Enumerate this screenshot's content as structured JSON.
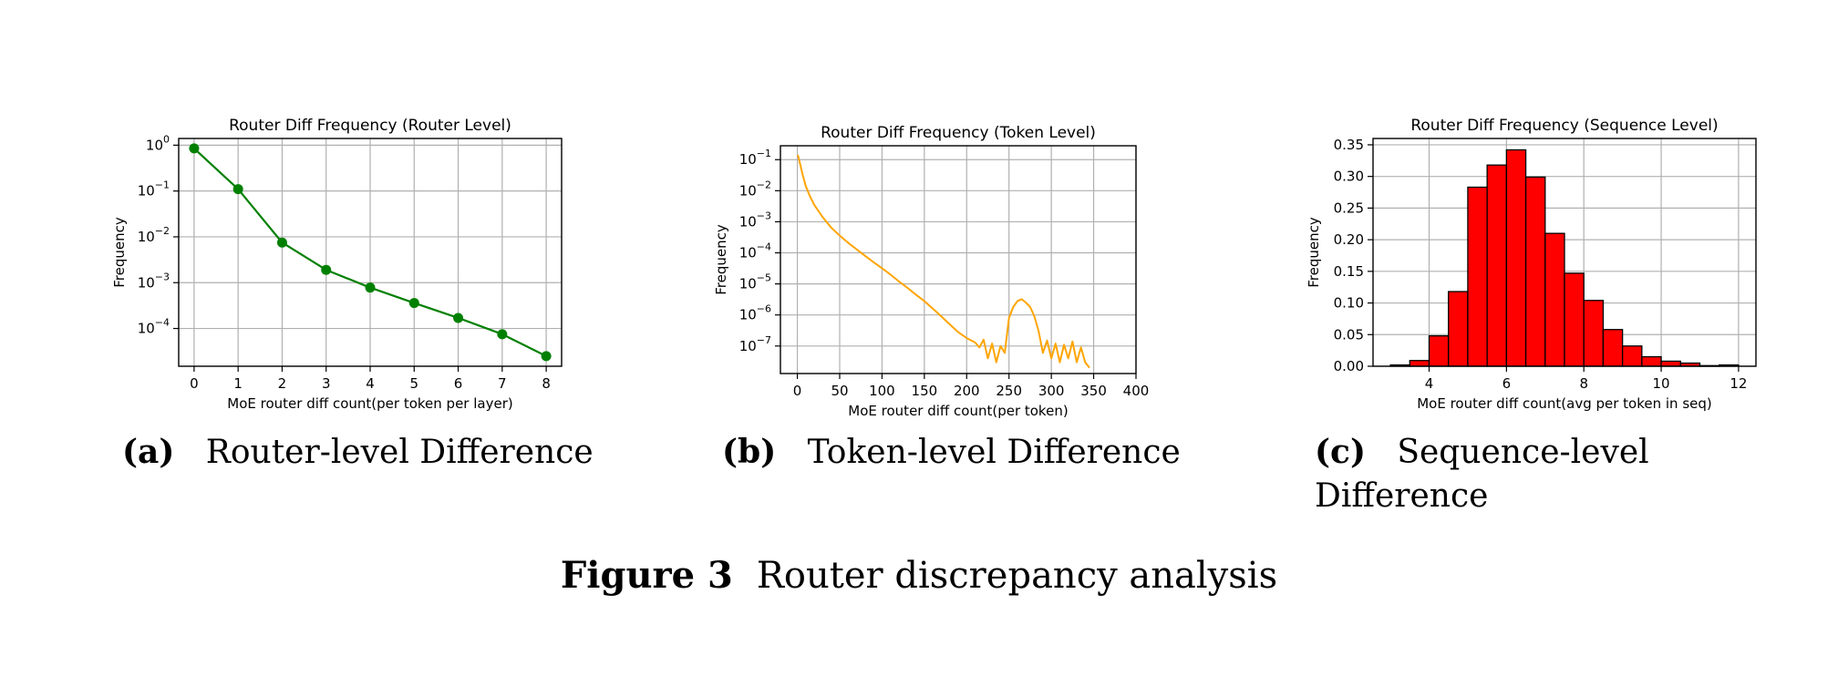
{
  "chart_data": [
    {
      "type": "line",
      "title": "Router Diff Frequency (Router Level)",
      "xlabel": "MoE router diff count(per token per layer)",
      "ylabel": "Frequency",
      "yscale": "log",
      "grid": true,
      "color": "#008000",
      "marker": "circle",
      "xlim": [
        -0.35,
        8.35
      ],
      "ylim": [
        1.5e-05,
        1.4
      ],
      "xticks": [
        0,
        1,
        2,
        3,
        4,
        5,
        6,
        7,
        8
      ],
      "xtick_labels": [
        "0",
        "1",
        "2",
        "3",
        "4",
        "5",
        "6",
        "7",
        "8"
      ],
      "yticks": [
        1,
        0.1,
        0.01,
        0.001,
        0.0001
      ],
      "ytick_labels": [
        [
          "10",
          "0"
        ],
        [
          "10",
          "−1"
        ],
        [
          "10",
          "−2"
        ],
        [
          "10",
          "−3"
        ],
        [
          "10",
          "−4"
        ]
      ],
      "x": [
        0,
        1,
        2,
        3,
        4,
        5,
        6,
        7,
        8
      ],
      "y": [
        0.85,
        0.11,
        0.0075,
        0.0019,
        0.00078,
        0.00036,
        0.00017,
        7.5e-05,
        2.5e-05
      ]
    },
    {
      "type": "line",
      "title": "Router Diff Frequency (Token Level)",
      "xlabel": "MoE router diff count(per token)",
      "ylabel": "Frequency",
      "yscale": "log",
      "grid": true,
      "color": "#FFA500",
      "xlim": [
        -20,
        400
      ],
      "ylim": [
        1.3e-08,
        0.28
      ],
      "xticks": [
        0,
        50,
        100,
        150,
        200,
        250,
        300,
        350,
        400
      ],
      "xtick_labels": [
        "0",
        "50",
        "100",
        "150",
        "200",
        "250",
        "300",
        "350",
        "400"
      ],
      "yticks": [
        0.1,
        0.01,
        0.001,
        0.0001,
        1e-05,
        1e-06,
        1e-07
      ],
      "ytick_labels": [
        [
          "10",
          "−1"
        ],
        [
          "10",
          "−2"
        ],
        [
          "10",
          "−3"
        ],
        [
          "10",
          "−4"
        ],
        [
          "10",
          "−5"
        ],
        [
          "10",
          "−6"
        ],
        [
          "10",
          "−7"
        ]
      ],
      "x": [
        0,
        1,
        2,
        4,
        6,
        8,
        10,
        15,
        20,
        25,
        30,
        40,
        50,
        60,
        70,
        80,
        90,
        100,
        110,
        120,
        130,
        140,
        150,
        160,
        170,
        180,
        190,
        200,
        210,
        215,
        220,
        225,
        230,
        235,
        240,
        245,
        250,
        255,
        260,
        265,
        270,
        275,
        280,
        285,
        290,
        295,
        300,
        305,
        310,
        315,
        320,
        325,
        330,
        335,
        340,
        345
      ],
      "y": [
        0.14,
        0.13,
        0.1,
        0.06,
        0.035,
        0.022,
        0.014,
        0.0065,
        0.0035,
        0.0022,
        0.0014,
        0.00065,
        0.00036,
        0.00021,
        0.00013,
        8e-05,
        5e-05,
        3.2e-05,
        2e-05,
        1.2e-05,
        7.5e-06,
        4.5e-06,
        2.8e-06,
        1.6e-06,
        9e-07,
        5e-07,
        2.8e-07,
        1.8e-07,
        1.3e-07,
        9e-08,
        1.6e-07,
        4e-08,
        1.2e-07,
        3e-08,
        1e-07,
        6e-08,
        8e-07,
        1.8e-06,
        2.8e-06,
        3.2e-06,
        2.5e-06,
        1.8e-06,
        9e-07,
        3e-07,
        6e-08,
        1.5e-07,
        4e-08,
        1.2e-07,
        3e-08,
        1.1e-07,
        4e-08,
        1.4e-07,
        3e-08,
        9e-08,
        3e-08,
        2e-08
      ]
    },
    {
      "type": "bar",
      "title": "Router Diff Frequency (Sequence Level)",
      "xlabel": "MoE router diff count(avg per token in seq)",
      "ylabel": "Frequency",
      "grid": true,
      "color": "#FF0000",
      "edgecolor": "#000000",
      "xlim": [
        2.55,
        12.45
      ],
      "ylim": [
        0,
        0.36
      ],
      "xticks": [
        4,
        6,
        8,
        10,
        12
      ],
      "xtick_labels": [
        "4",
        "6",
        "8",
        "10",
        "12"
      ],
      "yticks": [
        0,
        0.05,
        0.1,
        0.15,
        0.2,
        0.25,
        0.3,
        0.35
      ],
      "ytick_labels": [
        "0.00",
        "0.05",
        "0.10",
        "0.15",
        "0.20",
        "0.25",
        "0.30",
        "0.35"
      ],
      "bin_edges": [
        3.0,
        3.5,
        4.0,
        4.5,
        5.0,
        5.5,
        6.0,
        6.5,
        7.0,
        7.5,
        8.0,
        8.5,
        9.0,
        9.5,
        10.0,
        10.5,
        11.0,
        11.5,
        12.0
      ],
      "values": [
        0.002,
        0.009,
        0.048,
        0.118,
        0.283,
        0.318,
        0.342,
        0.299,
        0.21,
        0.147,
        0.104,
        0.058,
        0.032,
        0.015,
        0.008,
        0.005,
        0.001,
        0.002
      ]
    }
  ],
  "captions": [
    {
      "tag": "(a)",
      "text": "Router-level Difference"
    },
    {
      "tag": "(b)",
      "text": "Token-level Difference"
    },
    {
      "tag": "(c)",
      "text": "Sequence-level Difference"
    }
  ],
  "figure": {
    "number": "Figure 3",
    "caption": "Router discrepancy analysis"
  }
}
